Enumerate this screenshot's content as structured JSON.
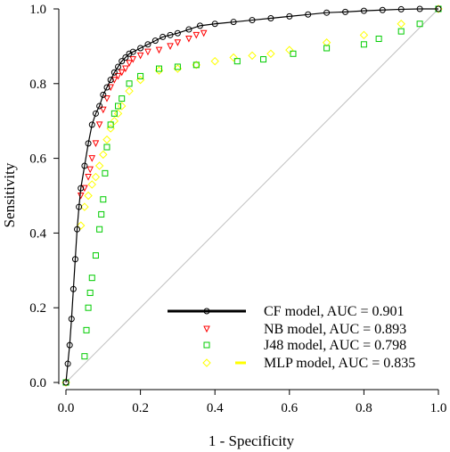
{
  "chart_data": {
    "type": "line",
    "xlabel": "1 - Specificity",
    "ylabel": "Sensitivity",
    "xlim": [
      0,
      1
    ],
    "ylim": [
      0,
      1
    ],
    "xticks": [
      "0.0",
      "0.2",
      "0.4",
      "0.6",
      "0.8",
      "1.0"
    ],
    "yticks": [
      "0.0",
      "0.2",
      "0.4",
      "0.6",
      "0.8",
      "1.0"
    ],
    "grid": false,
    "legend_position": "bottom-right",
    "diagonal": {
      "x": [
        0,
        1
      ],
      "y": [
        0,
        1
      ],
      "color": "#c0c0c0"
    },
    "series": [
      {
        "name": "CF model, AUC = 0.901",
        "color": "#000000",
        "marker": "circle",
        "x": [
          0.0,
          0.005,
          0.01,
          0.015,
          0.02,
          0.025,
          0.03,
          0.035,
          0.04,
          0.05,
          0.06,
          0.07,
          0.08,
          0.09,
          0.1,
          0.11,
          0.12,
          0.13,
          0.14,
          0.15,
          0.16,
          0.17,
          0.18,
          0.2,
          0.22,
          0.24,
          0.26,
          0.28,
          0.3,
          0.33,
          0.36,
          0.4,
          0.45,
          0.5,
          0.55,
          0.6,
          0.65,
          0.7,
          0.75,
          0.8,
          0.85,
          0.9,
          0.95,
          1.0
        ],
        "y": [
          0.0,
          0.05,
          0.1,
          0.17,
          0.25,
          0.33,
          0.41,
          0.47,
          0.52,
          0.58,
          0.64,
          0.69,
          0.72,
          0.74,
          0.77,
          0.79,
          0.81,
          0.83,
          0.845,
          0.86,
          0.87,
          0.88,
          0.885,
          0.895,
          0.905,
          0.915,
          0.925,
          0.93,
          0.935,
          0.945,
          0.955,
          0.96,
          0.965,
          0.97,
          0.975,
          0.98,
          0.985,
          0.99,
          0.992,
          0.995,
          0.997,
          0.999,
          1.0,
          1.0
        ]
      },
      {
        "name": "NB model, AUC = 0.893",
        "color": "#ff0000",
        "marker": "triangle-down",
        "x": [
          0.04,
          0.05,
          0.06,
          0.065,
          0.07,
          0.08,
          0.09,
          0.1,
          0.11,
          0.12,
          0.13,
          0.14,
          0.15,
          0.16,
          0.17,
          0.18,
          0.2,
          0.22,
          0.25,
          0.28,
          0.3,
          0.33,
          0.35,
          0.37
        ],
        "y": [
          0.5,
          0.52,
          0.55,
          0.57,
          0.6,
          0.64,
          0.69,
          0.73,
          0.76,
          0.79,
          0.81,
          0.82,
          0.83,
          0.84,
          0.855,
          0.865,
          0.875,
          0.885,
          0.89,
          0.9,
          0.91,
          0.92,
          0.93,
          0.935
        ]
      },
      {
        "name": "J48 model, AUC = 0.798",
        "color": "#00cc00",
        "marker": "square",
        "x": [
          0.0,
          0.05,
          0.055,
          0.06,
          0.065,
          0.07,
          0.08,
          0.09,
          0.095,
          0.1,
          0.105,
          0.11,
          0.12,
          0.13,
          0.14,
          0.15,
          0.17,
          0.2,
          0.25,
          0.3,
          0.35,
          0.46,
          0.53,
          0.61,
          0.7,
          0.8,
          0.84,
          0.9,
          0.95,
          1.0
        ],
        "y": [
          0.0,
          0.07,
          0.14,
          0.2,
          0.24,
          0.28,
          0.34,
          0.41,
          0.45,
          0.49,
          0.56,
          0.63,
          0.69,
          0.72,
          0.74,
          0.76,
          0.8,
          0.82,
          0.84,
          0.845,
          0.85,
          0.86,
          0.865,
          0.88,
          0.895,
          0.905,
          0.92,
          0.94,
          0.96,
          1.0
        ]
      },
      {
        "name": "MLP model, AUC = 0.835",
        "color": "#ffff00",
        "marker": "diamond",
        "x": [
          0.0,
          0.04,
          0.05,
          0.06,
          0.07,
          0.08,
          0.09,
          0.1,
          0.11,
          0.12,
          0.13,
          0.14,
          0.15,
          0.17,
          0.2,
          0.25,
          0.3,
          0.35,
          0.4,
          0.45,
          0.5,
          0.55,
          0.6,
          0.7,
          0.8,
          0.9,
          1.0
        ],
        "y": [
          0.0,
          0.42,
          0.47,
          0.5,
          0.53,
          0.55,
          0.58,
          0.61,
          0.65,
          0.68,
          0.7,
          0.72,
          0.74,
          0.78,
          0.81,
          0.835,
          0.84,
          0.85,
          0.86,
          0.87,
          0.875,
          0.88,
          0.89,
          0.91,
          0.93,
          0.96,
          1.0
        ]
      }
    ]
  }
}
